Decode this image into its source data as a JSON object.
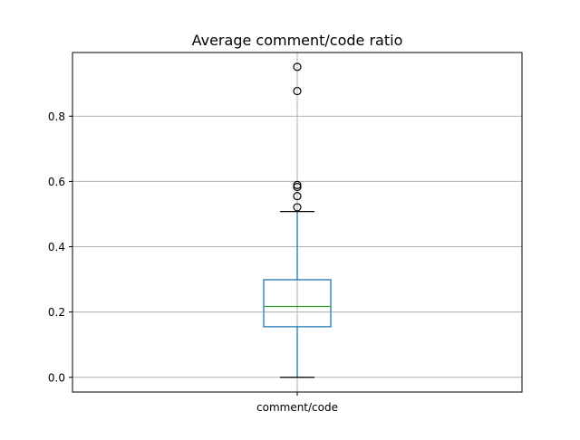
{
  "chart_data": {
    "type": "box",
    "title": "Average comment/code ratio",
    "xlabel": "",
    "ylabel": "",
    "categories": [
      "comment/code"
    ],
    "ylim": [
      -0.045,
      0.995
    ],
    "yticks": [
      0.0,
      0.2,
      0.4,
      0.6,
      0.8
    ],
    "ytick_labels": [
      "0.0",
      "0.2",
      "0.4",
      "0.6",
      "0.8"
    ],
    "grid": true,
    "boxes": [
      {
        "name": "comment/code",
        "whisker_low": 0.0,
        "q1": 0.155,
        "median": 0.217,
        "q3": 0.299,
        "whisker_high": 0.508,
        "outliers": [
          0.521,
          0.555,
          0.583,
          0.589,
          0.877,
          0.951
        ]
      }
    ],
    "colors": {
      "box": "#1f77b4",
      "median": "#2ca02c",
      "whisker_cap": "#000000",
      "grid": "#b0b0b0",
      "axes": "#000000",
      "outlier_edge": "#000000"
    }
  }
}
